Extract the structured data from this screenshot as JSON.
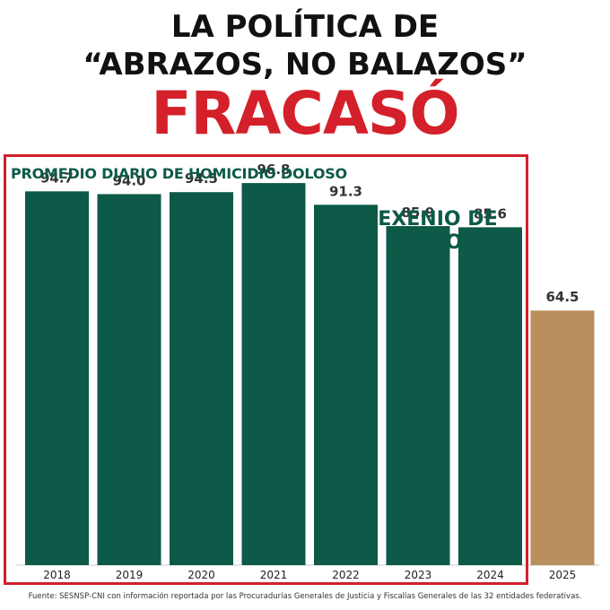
{
  "headline": {
    "line1": "LA POLÍTICA DE",
    "line2": "“ABRAZOS, NO BALAZOS”",
    "line3": "FRACASÓ"
  },
  "colors": {
    "green": "#0c5a47",
    "gold": "#b98f5e",
    "red": "#d11f2d"
  },
  "chart_data": {
    "type": "bar",
    "title": "PROMEDIO DIARIO DE HOMICIDIO DOLOSO",
    "annotation": "SEXENIO DE AMLO",
    "categories": [
      "2018",
      "2019",
      "2020",
      "2021",
      "2022",
      "2023",
      "2024",
      "2025"
    ],
    "values": [
      94.7,
      94.0,
      94.5,
      96.8,
      91.3,
      85.9,
      85.6,
      64.5
    ],
    "labels": [
      "94.7",
      "94.0",
      "94.5",
      "96.8",
      "91.3",
      "85.9",
      "85.6",
      "64.5"
    ],
    "bar_colors": [
      "#0c5a47",
      "#0c5a47",
      "#0c5a47",
      "#0c5a47",
      "#0c5a47",
      "#0c5a47",
      "#0c5a47",
      "#b98f5e"
    ],
    "ylim": [
      0,
      100
    ],
    "grid": false,
    "xlabel": "",
    "ylabel": ""
  },
  "source": "Fuente: SESNSP-CNI con información reportada por las Procuradurías Generales de Justicia y Fiscalías Generales de las 32 entidades federativas."
}
